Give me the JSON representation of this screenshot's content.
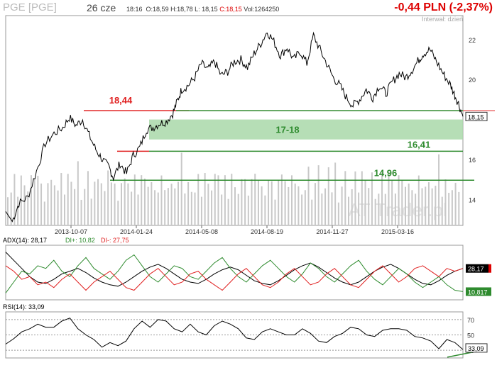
{
  "header": {
    "ticker": "PGE [PGE]",
    "date": "26 cze",
    "time": "18:16",
    "open": "O:18,59",
    "high": "H:18,78",
    "low": "L: 18,15",
    "close": "C:18,15",
    "volume": "Vol:1264250",
    "change": "-0,44 PLN (-2,37%)",
    "interval": "Interwał: dzień",
    "watermark": "AT Trader.pl"
  },
  "colors": {
    "price": "#000000",
    "green_line": "#2e8b2e",
    "red_line": "#e02020",
    "zone": "#a9d8a9",
    "volume": "#c8c8c8",
    "adx": "#000000",
    "di_plus": "#2e8b2e",
    "di_minus": "#e02020",
    "rsi": "#000000"
  },
  "chart_data": [
    {
      "type": "line",
      "panel": "price",
      "x_ticks": [
        "2013-10-07",
        "2014-01-24",
        "2014-05-08",
        "2014-08-19",
        "2014-11-27",
        "2015-03-16"
      ],
      "y_ticks": [
        14,
        16,
        20,
        22
      ],
      "ylim": [
        12.7,
        23.2
      ],
      "series": [
        {
          "points": [
            [
              0,
              13.4
            ],
            [
              6,
              12.9
            ],
            [
              12,
              13.8
            ],
            [
              20,
              14.1
            ],
            [
              28,
              15.4
            ],
            [
              36,
              16.8
            ],
            [
              44,
              17.3
            ],
            [
              52,
              17.6
            ],
            [
              58,
              18.1
            ],
            [
              64,
              17.7
            ],
            [
              70,
              18.0
            ],
            [
              76,
              17.2
            ],
            [
              82,
              16.5
            ],
            [
              88,
              16.0
            ],
            [
              94,
              15.6
            ],
            [
              98,
              15.1
            ],
            [
              104,
              15.8
            ],
            [
              110,
              15.3
            ],
            [
              116,
              16.2
            ],
            [
              122,
              16.6
            ],
            [
              128,
              17.5
            ],
            [
              134,
              17.6
            ],
            [
              140,
              17.8
            ],
            [
              146,
              17.9
            ],
            [
              152,
              18.3
            ],
            [
              156,
              18.9
            ],
            [
              160,
              19.5
            ],
            [
              166,
              19.7
            ],
            [
              172,
              20.1
            ],
            [
              178,
              20.8
            ],
            [
              184,
              20.5
            ],
            [
              190,
              20.9
            ],
            [
              196,
              20.2
            ],
            [
              202,
              20.4
            ],
            [
              208,
              20.9
            ],
            [
              214,
              21.0
            ],
            [
              220,
              20.6
            ],
            [
              226,
              21.3
            ],
            [
              232,
              21.8
            ],
            [
              238,
              22.4
            ],
            [
              244,
              21.9
            ],
            [
              250,
              21.2
            ],
            [
              256,
              21.6
            ],
            [
              262,
              21.0
            ],
            [
              268,
              21.4
            ],
            [
              274,
              20.8
            ],
            [
              280,
              22.2
            ],
            [
              286,
              21.5
            ],
            [
              292,
              20.8
            ],
            [
              298,
              20.1
            ],
            [
              304,
              19.7
            ],
            [
              310,
              19.1
            ],
            [
              316,
              18.7
            ],
            [
              322,
              19.0
            ],
            [
              328,
              19.5
            ],
            [
              334,
              19.1
            ],
            [
              340,
              19.7
            ],
            [
              346,
              19.3
            ],
            [
              352,
              19.9
            ],
            [
              358,
              20.3
            ],
            [
              364,
              20.1
            ],
            [
              370,
              20.5
            ],
            [
              376,
              21.0
            ],
            [
              380,
              21.3
            ],
            [
              386,
              21.5
            ],
            [
              392,
              20.9
            ],
            [
              398,
              20.3
            ],
            [
              404,
              19.8
            ],
            [
              408,
              19.3
            ],
            [
              412,
              18.8
            ],
            [
              416,
              18.15
            ]
          ]
        }
      ],
      "annotations": [
        {
          "text": "18,44",
          "value": 18.44,
          "color": "red"
        },
        {
          "text": "17-18",
          "low": 17,
          "high": 18,
          "color": "green"
        },
        {
          "text": "16,41",
          "value": 16.41,
          "color": "green"
        },
        {
          "text": "14,96",
          "value": 14.96,
          "color": "green"
        }
      ],
      "last_value_label": "18,15",
      "volume": [
        32,
        28,
        35,
        30,
        40,
        26,
        33,
        38,
        29,
        45,
        30,
        27,
        36,
        31,
        42,
        28,
        34,
        30,
        39,
        27,
        33,
        46,
        29,
        31,
        37,
        28,
        35,
        30,
        41,
        26,
        34,
        39,
        30,
        28,
        36,
        32,
        44,
        27,
        33,
        30,
        38,
        29,
        35,
        31,
        40,
        28,
        34,
        37,
        30,
        27,
        36,
        33,
        45,
        29,
        31,
        38,
        28,
        35,
        30,
        42,
        27,
        34,
        39,
        31,
        28,
        36,
        30,
        44,
        26,
        33,
        37,
        30,
        29,
        35,
        32,
        41,
        28,
        34,
        38,
        30,
        27,
        36,
        33,
        43,
        29,
        31,
        38,
        28,
        35,
        30,
        40,
        27,
        34,
        39,
        31,
        28,
        36,
        30,
        45,
        26,
        33,
        37,
        30,
        29,
        35,
        32,
        41,
        28,
        34,
        38,
        30,
        27,
        36,
        33,
        43,
        29,
        31,
        38,
        28,
        35,
        30,
        40,
        27,
        34,
        39,
        31,
        28,
        36,
        30,
        44,
        26,
        33,
        37,
        30,
        29,
        35
      ]
    },
    {
      "type": "line",
      "panel": "adx",
      "title": "ADX(14): 28,17",
      "legend": [
        {
          "name": "DI+: 10,82",
          "color": "green"
        },
        {
          "name": "DI-: 27,75",
          "color": "red"
        }
      ],
      "ylim": [
        5,
        45
      ],
      "series": [
        {
          "name": "ADX",
          "values": [
            40,
            34,
            28,
            22,
            18,
            17,
            20,
            24,
            26,
            28,
            25,
            21,
            18,
            16,
            15,
            18,
            22,
            26,
            29,
            31,
            28,
            24,
            20,
            18,
            17,
            20,
            24,
            27,
            29,
            27,
            23,
            19,
            17,
            16,
            19,
            23,
            27,
            30,
            32,
            29,
            25,
            21,
            18,
            16,
            18,
            22,
            26,
            29,
            31,
            28,
            24,
            20,
            17,
            16,
            19,
            23,
            26,
            28
          ]
        },
        {
          "name": "DI+",
          "values": [
            10,
            18,
            26,
            24,
            30,
            28,
            34,
            26,
            22,
            30,
            36,
            28,
            24,
            20,
            26,
            34,
            38,
            30,
            22,
            18,
            24,
            30,
            28,
            22,
            20,
            26,
            32,
            36,
            28,
            22,
            18,
            24,
            30,
            34,
            28,
            22,
            18,
            24,
            32,
            28,
            22,
            18,
            24,
            30,
            34,
            26,
            20,
            16,
            22,
            28,
            24,
            18,
            14,
            18,
            22,
            16,
            12,
            11
          ]
        },
        {
          "name": "DI-",
          "values": [
            30,
            26,
            20,
            22,
            16,
            18,
            14,
            20,
            24,
            18,
            12,
            18,
            22,
            26,
            20,
            14,
            12,
            18,
            24,
            28,
            22,
            16,
            18,
            24,
            26,
            20,
            16,
            12,
            18,
            24,
            28,
            22,
            16,
            14,
            18,
            24,
            28,
            22,
            16,
            18,
            24,
            28,
            22,
            16,
            14,
            20,
            26,
            30,
            24,
            18,
            22,
            28,
            30,
            26,
            22,
            28,
            26,
            28
          ]
        }
      ],
      "last_value_labels": [
        "28,17",
        "10,817"
      ]
    },
    {
      "type": "line",
      "panel": "rsi",
      "title": "RSI(14): 33,09",
      "y_ticks": [
        30,
        50,
        70
      ],
      "ylim": [
        20,
        80
      ],
      "series": [
        {
          "name": "RSI",
          "values": [
            40,
            45,
            52,
            60,
            64,
            58,
            62,
            68,
            70,
            60,
            50,
            42,
            36,
            40,
            34,
            44,
            58,
            66,
            62,
            70,
            66,
            60,
            54,
            62,
            56,
            50,
            60,
            70,
            64,
            56,
            48,
            44,
            52,
            60,
            54,
            48,
            52,
            58,
            50,
            44,
            40,
            46,
            54,
            60,
            56,
            52,
            48,
            54,
            60,
            58,
            54,
            50,
            46,
            40,
            34,
            44,
            38,
            33
          ]
        }
      ],
      "last_value_label": "33,09"
    }
  ]
}
